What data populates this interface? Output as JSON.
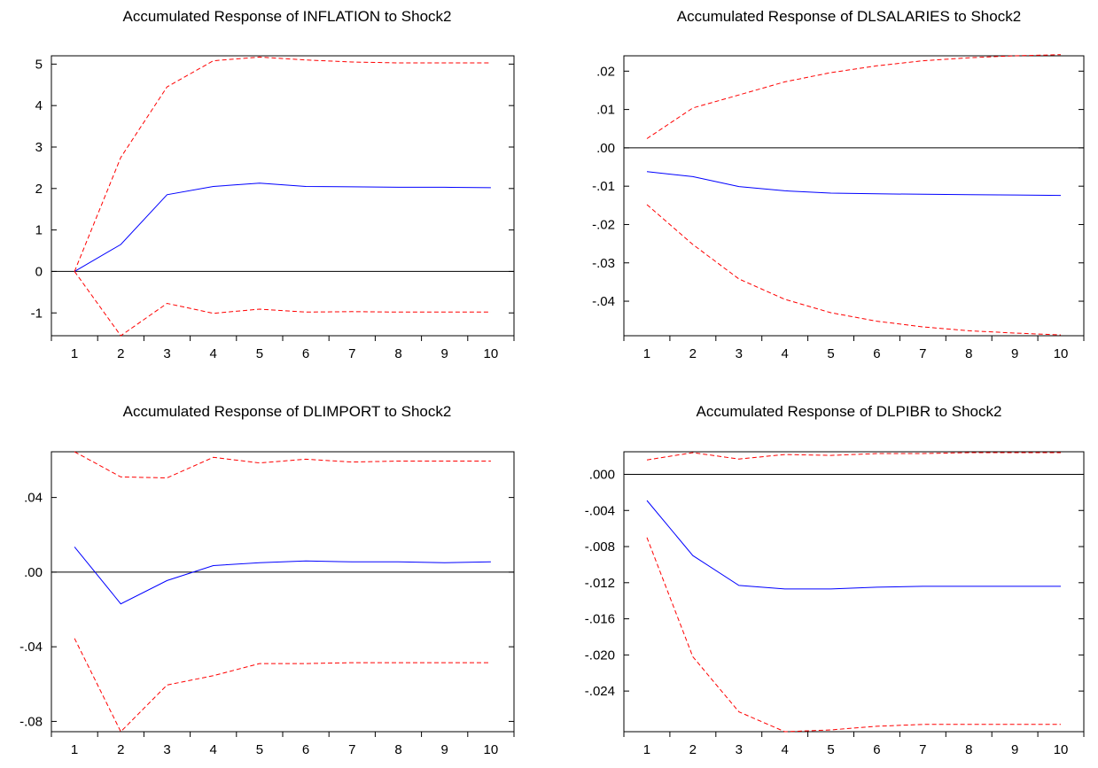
{
  "colors": {
    "response": "#0000ff",
    "bands": "#ff0000",
    "zero_line": "#000000",
    "frame": "#000000",
    "background": "#ffffff"
  },
  "chart_data": [
    {
      "type": "line",
      "title": "Accumulated Response of INFLATION to Shock2",
      "x": [
        1,
        2,
        3,
        4,
        5,
        6,
        7,
        8,
        9,
        10
      ],
      "ylim": [
        -1.55,
        5.2
      ],
      "yticks": [
        -1,
        0,
        1,
        2,
        3,
        4,
        5
      ],
      "ytick_labels": [
        "-1",
        "0",
        "1",
        "2",
        "3",
        "4",
        "5"
      ],
      "xtick_labels": [
        "1",
        "2",
        "3",
        "4",
        "5",
        "6",
        "7",
        "8",
        "9",
        "10"
      ],
      "zero_line": true,
      "series": [
        {
          "role": "response",
          "values": [
            0.0,
            0.65,
            1.85,
            2.05,
            2.13,
            2.05,
            2.04,
            2.03,
            2.03,
            2.02
          ]
        },
        {
          "role": "upper",
          "values": [
            0.0,
            2.75,
            4.45,
            5.08,
            5.17,
            5.1,
            5.05,
            5.03,
            5.03,
            5.03
          ]
        },
        {
          "role": "lower",
          "values": [
            0.0,
            -1.55,
            -0.77,
            -1.01,
            -0.91,
            -0.98,
            -0.97,
            -0.98,
            -0.98,
            -0.98
          ]
        }
      ]
    },
    {
      "type": "line",
      "title": "Accumulated Response of DLSALARIES to Shock2",
      "x": [
        1,
        2,
        3,
        4,
        5,
        6,
        7,
        8,
        9,
        10
      ],
      "ylim": [
        -0.049,
        0.024
      ],
      "yticks": [
        -0.04,
        -0.03,
        -0.02,
        -0.01,
        0.0,
        0.01,
        0.02
      ],
      "ytick_labels": [
        "-.04",
        "-.03",
        "-.02",
        "-.01",
        ".00",
        ".01",
        ".02"
      ],
      "xtick_labels": [
        "1",
        "2",
        "3",
        "4",
        "5",
        "6",
        "7",
        "8",
        "9",
        "10"
      ],
      "zero_line": true,
      "series": [
        {
          "role": "response",
          "values": [
            -0.0062,
            -0.0075,
            -0.0101,
            -0.0112,
            -0.0118,
            -0.012,
            -0.0121,
            -0.0122,
            -0.0123,
            -0.0124
          ]
        },
        {
          "role": "upper",
          "values": [
            0.0024,
            0.0104,
            0.0138,
            0.0172,
            0.0196,
            0.0214,
            0.0227,
            0.0235,
            0.024,
            0.0243
          ]
        },
        {
          "role": "lower",
          "values": [
            -0.0148,
            -0.0252,
            -0.0342,
            -0.0395,
            -0.043,
            -0.0452,
            -0.0467,
            -0.0477,
            -0.0483,
            -0.0488
          ]
        }
      ]
    },
    {
      "type": "line",
      "title": "Accumulated Response of DLIMPORT to Shock2",
      "x": [
        1,
        2,
        3,
        4,
        5,
        6,
        7,
        8,
        9,
        10
      ],
      "ylim": [
        -0.0855,
        0.0645
      ],
      "yticks": [
        -0.08,
        -0.04,
        0.0,
        0.04
      ],
      "ytick_labels": [
        "-.08",
        "-.04",
        ".00",
        ".04"
      ],
      "xtick_labels": [
        "1",
        "2",
        "3",
        "4",
        "5",
        "6",
        "7",
        "8",
        "9",
        "10"
      ],
      "zero_line": true,
      "series": [
        {
          "role": "response",
          "values": [
            0.0135,
            -0.017,
            -0.0045,
            0.0035,
            0.005,
            0.006,
            0.0055,
            0.0055,
            0.005,
            0.0055
          ]
        },
        {
          "role": "upper",
          "values": [
            0.0645,
            0.051,
            0.0505,
            0.0615,
            0.0585,
            0.0605,
            0.059,
            0.0595,
            0.0595,
            0.0595
          ]
        },
        {
          "role": "lower",
          "values": [
            -0.0355,
            -0.0855,
            -0.0605,
            -0.0555,
            -0.049,
            -0.049,
            -0.0485,
            -0.0485,
            -0.0485,
            -0.0485
          ]
        }
      ]
    },
    {
      "type": "line",
      "title": "Accumulated Response of DLPIBR to Shock2",
      "x": [
        1,
        2,
        3,
        4,
        5,
        6,
        7,
        8,
        9,
        10
      ],
      "ylim": [
        -0.0285,
        0.0025
      ],
      "yticks": [
        -0.024,
        -0.02,
        -0.016,
        -0.012,
        -0.008,
        -0.004,
        0.0
      ],
      "ytick_labels": [
        "-.024",
        "-.020",
        "-.016",
        "-.012",
        "-.008",
        "-.004",
        ".000"
      ],
      "xtick_labels": [
        "1",
        "2",
        "3",
        "4",
        "5",
        "6",
        "7",
        "8",
        "9",
        "10"
      ],
      "zero_line": true,
      "series": [
        {
          "role": "response",
          "values": [
            -0.0029,
            -0.009,
            -0.0123,
            -0.0127,
            -0.0127,
            -0.0125,
            -0.0124,
            -0.0124,
            -0.0124,
            -0.0124
          ]
        },
        {
          "role": "upper",
          "values": [
            0.0016,
            0.0024,
            0.0017,
            0.0022,
            0.0021,
            0.0023,
            0.0023,
            0.0024,
            0.0024,
            0.0024
          ]
        },
        {
          "role": "lower",
          "values": [
            -0.007,
            -0.0202,
            -0.0263,
            -0.0285,
            -0.0283,
            -0.0279,
            -0.0277,
            -0.0277,
            -0.0277,
            -0.0277
          ]
        }
      ]
    }
  ]
}
